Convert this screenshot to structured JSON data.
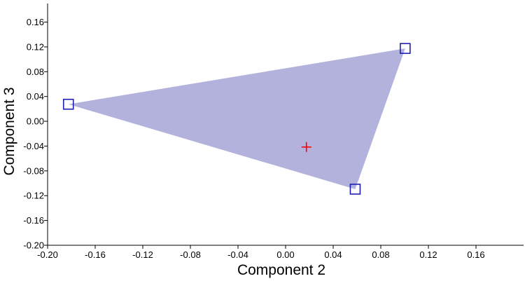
{
  "chart_data": {
    "type": "scatter",
    "xlabel": "Component 2",
    "ylabel": "Component 3",
    "xlim": [
      -0.2,
      0.2
    ],
    "ylim": [
      -0.2,
      0.19
    ],
    "x_ticks": [
      "-0.20",
      "-0.16",
      "-0.12",
      "-0.08",
      "-0.04",
      "0.00",
      "0.04",
      "0.08",
      "0.12",
      "0.16"
    ],
    "y_ticks": [
      "-0.20",
      "-0.16",
      "-0.12",
      "-0.08",
      "-0.04",
      "0.00",
      "0.04",
      "0.08",
      "0.12",
      "0.16"
    ],
    "grid": false,
    "series": [
      {
        "marker": "open-square",
        "color": "#1f1fb4",
        "points": [
          {
            "x": -0.1825,
            "y": 0.0275
          },
          {
            "x": 0.1005,
            "y": 0.1175
          },
          {
            "x": 0.0585,
            "y": -0.1095
          }
        ]
      },
      {
        "marker": "plus",
        "color": "#ff0000",
        "points": [
          {
            "x": 0.0175,
            "y": -0.0415
          }
        ]
      }
    ],
    "hull": {
      "fill": "#b2b2dc",
      "vertices": [
        0,
        1,
        2
      ]
    }
  }
}
